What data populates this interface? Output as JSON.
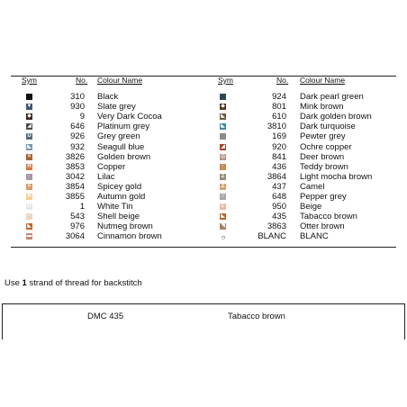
{
  "headers": {
    "sym": "Sym",
    "no": "No.",
    "colour_name": "Colour Name"
  },
  "left_rows": [
    {
      "no": "310",
      "name": "Black",
      "color": "#111111",
      "glyph": ""
    },
    {
      "no": "930",
      "name": "Slate grey",
      "color": "#3f5670",
      "glyph": "▼"
    },
    {
      "no": "9",
      "name": "Very Dark Cocoa",
      "color": "#3a2623",
      "glyph": "◆"
    },
    {
      "no": "646",
      "name": "Platinum grey",
      "color": "#4b4c47",
      "glyph": "◢"
    },
    {
      "no": "926",
      "name": "Grey green",
      "color": "#4f6c78",
      "glyph": "U"
    },
    {
      "no": "932",
      "name": "Seagull blue",
      "color": "#7a97b4",
      "glyph": "◣"
    },
    {
      "no": "3826",
      "name": "Golden brown",
      "color": "#a8632f",
      "glyph": "✕"
    },
    {
      "no": "3853",
      "name": "Copper",
      "color": "#d9783a",
      "glyph": "H"
    },
    {
      "no": "3042",
      "name": "Lilac",
      "color": "#a897a6",
      "glyph": "◦"
    },
    {
      "no": "3854",
      "name": "Spicey gold",
      "color": "#d89a5e",
      "glyph": "✕"
    },
    {
      "no": "3855",
      "name": "Autumn gold",
      "color": "#f2cc8e",
      "glyph": "H"
    },
    {
      "no": "1",
      "name": "White Tin",
      "color": "#e7e7e7",
      "glyph": "U"
    },
    {
      "no": "543",
      "name": "Shell beige",
      "color": "#e9d6c3",
      "glyph": "┘"
    },
    {
      "no": "976",
      "name": "Nutmeg brown",
      "color": "#b8672a",
      "glyph": "◣"
    },
    {
      "no": "3064",
      "name": "Cinnamon brown",
      "color": "#c08a73",
      "glyph": "▬"
    }
  ],
  "right_rows": [
    {
      "no": "924",
      "name": "Dark pearl green",
      "color": "#2d4a52",
      "glyph": ""
    },
    {
      "no": "801",
      "name": "Mink brown",
      "color": "#5a3420",
      "glyph": "◆"
    },
    {
      "no": "610",
      "name": "Dark golden brown",
      "color": "#6e5a3a",
      "glyph": "◣"
    },
    {
      "no": "3810",
      "name": "Dark turquoise",
      "color": "#3a8aa4",
      "glyph": "◣"
    },
    {
      "no": "169",
      "name": "Pewter grey",
      "color": "#8a8c8c",
      "glyph": ""
    },
    {
      "no": "920",
      "name": "Ochre copper",
      "color": "#a24a2a",
      "glyph": "◢"
    },
    {
      "no": "841",
      "name": "Deer brown",
      "color": "#b8968a",
      "glyph": "◎"
    },
    {
      "no": "436",
      "name": "Teddy brown",
      "color": "#c88c56",
      "glyph": "◦"
    },
    {
      "no": "3864",
      "name": "Light mocha brown",
      "color": "#9a8a78",
      "glyph": "Z"
    },
    {
      "no": "437",
      "name": "Camel",
      "color": "#d6a06c",
      "glyph": "Z"
    },
    {
      "no": "648",
      "name": "Pepper grey",
      "color": "#a8a9a5",
      "glyph": "∩"
    },
    {
      "no": "950",
      "name": "Beige",
      "color": "#e6b6a4",
      "glyph": "C"
    },
    {
      "no": "435",
      "name": "Tabacco brown",
      "color": "#b5682c",
      "glyph": "◣"
    },
    {
      "no": "3863",
      "name": "Otter brown",
      "color": "#a4846a",
      "glyph": "◥"
    },
    {
      "no": "BLANC",
      "name": "BLANC",
      "color": "#ffffff",
      "glyph": "○",
      "hollow": true
    }
  ],
  "instruction": {
    "prefix": "Use ",
    "count": "1",
    "suffix": " strand of thread for backstitch"
  },
  "backstitch": {
    "number": "DMC 435",
    "name": "Tabacco brown"
  }
}
